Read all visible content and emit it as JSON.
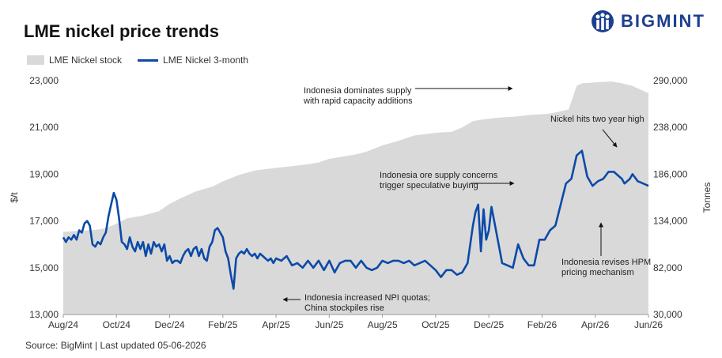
{
  "title": "LME nickel price trends",
  "brand": "BIGMINT",
  "source": "Source: BigMint | Last updated 05-06-2026",
  "colors": {
    "stock": "#d9d9d9",
    "price": "#0b4aa8",
    "brand": "#1d3f8f"
  },
  "chart_data": {
    "type": "area+line",
    "legend": [
      "LME Nickel stock",
      "LME Nickel 3-month"
    ],
    "ylabel_left": "$/t",
    "ylabel_right": "Tonnes",
    "ylim_left": [
      13000,
      23000
    ],
    "ylim_right": [
      30000,
      290000
    ],
    "yticks_left": [
      "23,000",
      "21,000",
      "19,000",
      "17,000",
      "15,000",
      "13,000"
    ],
    "yticks_right": [
      "290,000",
      "238,000",
      "186,000",
      "134,000",
      "82,000",
      "30,000"
    ],
    "xticks": [
      "Aug/24",
      "Oct/24",
      "Dec/24",
      "Feb/25",
      "Apr/25",
      "Jun/25",
      "Aug/25",
      "Oct/25",
      "Dec/25",
      "Feb/26",
      "Apr/26",
      "Jun/26"
    ],
    "xrange": [
      0,
      22
    ],
    "series": [
      {
        "name": "LME Nickel stock",
        "type": "area",
        "axis": "right",
        "x": [
          0,
          0.6,
          1.2,
          1.6,
          2.0,
          2.4,
          3.0,
          3.6,
          4.0,
          4.4,
          5.0,
          5.6,
          6.0,
          6.6,
          7.2,
          8.0,
          8.6,
          9.2,
          9.6,
          10.0,
          10.6,
          11.0,
          11.4,
          12.0,
          12.6,
          13.2,
          14.0,
          14.6,
          15.0,
          15.4,
          15.8,
          16.4,
          17.0,
          17.6,
          18.2,
          18.6,
          19.0,
          19.3,
          19.5,
          20.0,
          20.6,
          21.0,
          21.4,
          22.0
        ],
        "values": [
          122000,
          123000,
          124000,
          126000,
          131000,
          137000,
          140000,
          145000,
          153000,
          159000,
          167000,
          172000,
          178000,
          185000,
          190000,
          193000,
          195000,
          197000,
          199000,
          203000,
          206000,
          208000,
          211000,
          218000,
          223000,
          229000,
          232000,
          233000,
          238000,
          245000,
          247000,
          249000,
          250000,
          252000,
          253000,
          255000,
          258000,
          284000,
          287000,
          288000,
          289000,
          287000,
          284000,
          276000
        ]
      },
      {
        "name": "LME Nickel 3-month",
        "type": "line",
        "axis": "left",
        "x": [
          0,
          0.1,
          0.2,
          0.3,
          0.4,
          0.5,
          0.6,
          0.7,
          0.8,
          0.9,
          1.0,
          1.1,
          1.2,
          1.3,
          1.4,
          1.5,
          1.6,
          1.7,
          1.8,
          1.9,
          2.0,
          2.1,
          2.2,
          2.3,
          2.4,
          2.5,
          2.6,
          2.7,
          2.8,
          2.9,
          3.0,
          3.1,
          3.2,
          3.3,
          3.4,
          3.5,
          3.6,
          3.7,
          3.8,
          3.9,
          4.0,
          4.1,
          4.2,
          4.3,
          4.4,
          4.5,
          4.6,
          4.7,
          4.8,
          4.9,
          5.0,
          5.1,
          5.2,
          5.3,
          5.4,
          5.5,
          5.6,
          5.7,
          5.8,
          5.9,
          6.0,
          6.1,
          6.2,
          6.3,
          6.4,
          6.5,
          6.6,
          6.7,
          6.8,
          6.9,
          7.0,
          7.1,
          7.2,
          7.3,
          7.4,
          7.5,
          7.6,
          7.7,
          7.8,
          7.9,
          8.0,
          8.2,
          8.4,
          8.6,
          8.8,
          9.0,
          9.2,
          9.4,
          9.6,
          9.8,
          10.0,
          10.2,
          10.4,
          10.6,
          10.8,
          11.0,
          11.2,
          11.4,
          11.6,
          11.8,
          12.0,
          12.2,
          12.4,
          12.6,
          12.8,
          13.0,
          13.2,
          13.4,
          13.6,
          13.8,
          14.0,
          14.2,
          14.4,
          14.6,
          14.8,
          15.0,
          15.2,
          15.4,
          15.5,
          15.6,
          15.7,
          15.8,
          15.9,
          16.0,
          16.1,
          16.3,
          16.5,
          16.7,
          16.9,
          17.1,
          17.3,
          17.5,
          17.7,
          17.9,
          18.1,
          18.3,
          18.5,
          18.7,
          18.9,
          19.1,
          19.3,
          19.5,
          19.7,
          19.9,
          20.1,
          20.3,
          20.5,
          20.7,
          20.9,
          21.0,
          21.1,
          21.2,
          21.3,
          21.4,
          21.6,
          21.8,
          22.0
        ],
        "values": [
          16300,
          16100,
          16300,
          16200,
          16400,
          16200,
          16600,
          16500,
          16900,
          17000,
          16800,
          16000,
          15900,
          16100,
          16000,
          16300,
          16500,
          17200,
          17700,
          18200,
          17900,
          17100,
          16100,
          16000,
          15800,
          16300,
          15900,
          15700,
          16100,
          15800,
          16100,
          15500,
          16000,
          15600,
          16100,
          15900,
          16000,
          15700,
          16000,
          15300,
          15500,
          15200,
          15300,
          15300,
          15200,
          15500,
          15700,
          15800,
          15500,
          15800,
          15900,
          15500,
          15800,
          15400,
          15300,
          15900,
          16100,
          16600,
          16700,
          16500,
          16300,
          15700,
          15400,
          14700,
          14100,
          15400,
          15600,
          15700,
          15600,
          15800,
          15600,
          15500,
          15600,
          15400,
          15600,
          15500,
          15400,
          15300,
          15400,
          15200,
          15400,
          15300,
          15500,
          15100,
          15200,
          15000,
          15300,
          15000,
          15300,
          14900,
          15300,
          14800,
          15200,
          15300,
          15300,
          15000,
          15300,
          15000,
          14900,
          15000,
          15300,
          15200,
          15300,
          15300,
          15200,
          15300,
          15100,
          15200,
          15300,
          15100,
          14900,
          14600,
          14900,
          14900,
          14700,
          14800,
          15200,
          16800,
          17400,
          17700,
          15700,
          17500,
          16200,
          16600,
          17600,
          16400,
          15200,
          15100,
          15000,
          16000,
          15400,
          15100,
          15100,
          16200,
          16200,
          16600,
          16800,
          17700,
          18600,
          18800,
          19800,
          20000,
          18900,
          18500,
          18700,
          18800,
          19100,
          19100,
          18900,
          18800,
          18600,
          18700,
          18800,
          19000,
          18700,
          18600,
          18500
        ]
      }
    ],
    "annotations": [
      {
        "text": [
          "Indonesia dominates supply",
          "with rapid capacity additions"
        ]
      },
      {
        "text": [
          "Nickel hits two year high"
        ]
      },
      {
        "text": [
          "Indonesia ore supply concerns",
          "trigger speculative buying"
        ]
      },
      {
        "text": [
          "Indonesia revises HPM",
          "pricing mechanism"
        ]
      },
      {
        "text": [
          "Indonesia increased NPI quotas;",
          "China stockpiles rise"
        ]
      }
    ]
  }
}
